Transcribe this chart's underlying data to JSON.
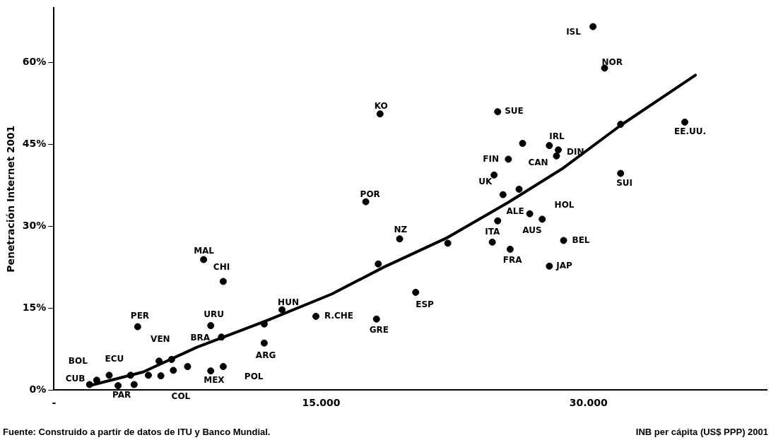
{
  "chart_data": {
    "type": "scatter",
    "xlabel": "INB per cápita (US$ PPP) 2001",
    "ylabel": "Penetración Internet 2001",
    "xlim": [
      0,
      40000
    ],
    "xticks": [
      {
        "value": 0,
        "label": "-"
      },
      {
        "value": 15000,
        "label": "15.000"
      },
      {
        "value": 30000,
        "label": "30.000"
      }
    ],
    "ylim": [
      0,
      70
    ],
    "yticks": [
      {
        "value": 0,
        "label": "0%"
      },
      {
        "value": 15,
        "label": "15%"
      },
      {
        "value": 30,
        "label": "30%"
      },
      {
        "value": 45,
        "label": "45%"
      },
      {
        "value": 60,
        "label": "60%"
      }
    ],
    "grid": false,
    "legend": false,
    "marker": "circle",
    "series": [
      {
        "type": "scatter",
        "color": "#000000",
        "x": [
          30250,
          30900,
          35400,
          31800,
          31800,
          24900,
          26300,
          27800,
          28300,
          28200,
          25500,
          24700,
          25200,
          26100,
          26700,
          27400,
          24900,
          24600,
          25600,
          28600,
          27800,
          18300,
          17500,
          19400,
          22100,
          18200,
          20300,
          14700,
          18100,
          12800,
          11800,
          11800,
          8400,
          9500,
          8800,
          9400,
          4700,
          5900,
          6600,
          7500,
          6700,
          6000,
          8800,
          9500,
          4500,
          5300,
          4300,
          3600,
          3100,
          2400,
          2000
        ],
        "values": [
          66.6,
          59.0,
          49.1,
          39.7,
          48.7,
          51.0,
          45.2,
          44.8,
          44.0,
          42.9,
          42.3,
          39.4,
          35.8,
          36.8,
          32.3,
          31.3,
          31.0,
          27.1,
          25.8,
          27.4,
          22.7,
          50.6,
          34.5,
          27.7,
          26.9,
          23.1,
          17.9,
          13.5,
          13.0,
          14.7,
          12.1,
          8.6,
          23.9,
          19.9,
          11.8,
          9.7,
          11.6,
          5.3,
          5.6,
          4.3,
          3.6,
          2.6,
          3.5,
          4.3,
          1.0,
          2.7,
          2.7,
          0.8,
          2.7,
          1.8,
          1.0
        ]
      },
      {
        "type": "line",
        "color": "#000000",
        "marker": "none",
        "x": [
          2000,
          5000,
          8000,
          12000,
          15600,
          18500,
          22000,
          25500,
          28500,
          31800,
          36000
        ],
        "values": [
          0.8,
          3.3,
          7.8,
          12.8,
          17.6,
          22.5,
          27.8,
          34.4,
          40.5,
          48.5,
          57.7
        ]
      }
    ],
    "annotations": [
      {
        "text": "ISL",
        "x": 30250,
        "y": 66.6
      },
      {
        "text": "NOR",
        "x": 30900,
        "y": 59.0
      },
      {
        "text": "EE.UU.",
        "x": 35400,
        "y": 49.1
      },
      {
        "text": "SUI",
        "x": 31800,
        "y": 39.7
      },
      {
        "text": "SUE",
        "x": 24900,
        "y": 51.0
      },
      {
        "text": "IRL",
        "x": 27800,
        "y": 44.8
      },
      {
        "text": "DIN",
        "x": 28300,
        "y": 44.0
      },
      {
        "text": "CAN",
        "x": 28200,
        "y": 42.9
      },
      {
        "text": "FIN",
        "x": 25500,
        "y": 42.3
      },
      {
        "text": "UK",
        "x": 24700,
        "y": 39.4
      },
      {
        "text": "ALE",
        "x": 26100,
        "y": 36.8
      },
      {
        "text": "HOL",
        "x": 26700,
        "y": 32.3
      },
      {
        "text": "AUS",
        "x": 27400,
        "y": 31.3
      },
      {
        "text": "ITA",
        "x": 24900,
        "y": 31.0
      },
      {
        "text": "FRA",
        "x": 25600,
        "y": 25.8
      },
      {
        "text": "BEL",
        "x": 28600,
        "y": 27.4
      },
      {
        "text": "JAP",
        "x": 27800,
        "y": 22.7
      },
      {
        "text": "KO",
        "x": 18300,
        "y": 50.6
      },
      {
        "text": "POR",
        "x": 17500,
        "y": 34.5
      },
      {
        "text": "NZ",
        "x": 19400,
        "y": 27.7
      },
      {
        "text": "ESP",
        "x": 20300,
        "y": 17.9
      },
      {
        "text": "R.CHE",
        "x": 14700,
        "y": 13.5
      },
      {
        "text": "GRE",
        "x": 18100,
        "y": 13.0
      },
      {
        "text": "HUN",
        "x": 12800,
        "y": 14.7
      },
      {
        "text": "ARG",
        "x": 11800,
        "y": 8.6
      },
      {
        "text": "MAL",
        "x": 8400,
        "y": 23.9
      },
      {
        "text": "CHI",
        "x": 9500,
        "y": 19.9
      },
      {
        "text": "URU",
        "x": 8800,
        "y": 11.8
      },
      {
        "text": "PER",
        "x": 4700,
        "y": 11.6
      },
      {
        "text": "VEN",
        "x": 5900,
        "y": 5.3
      },
      {
        "text": "BRA",
        "x": 7500,
        "y": 4.3
      },
      {
        "text": "COL",
        "x": 6000,
        "y": 2.6
      },
      {
        "text": "MEX",
        "x": 8800,
        "y": 3.5
      },
      {
        "text": "POL",
        "x": 9500,
        "y": 4.3
      },
      {
        "text": "ECU",
        "x": 3100,
        "y": 2.7
      },
      {
        "text": "BOL",
        "x": 2400,
        "y": 1.8
      },
      {
        "text": "CUB",
        "x": 2000,
        "y": 1.0
      },
      {
        "text": "PAR",
        "x": 3600,
        "y": 0.8
      },
      "Fuente: Construido a partir de datos de  ITU y Banco Mundial."
    ]
  }
}
